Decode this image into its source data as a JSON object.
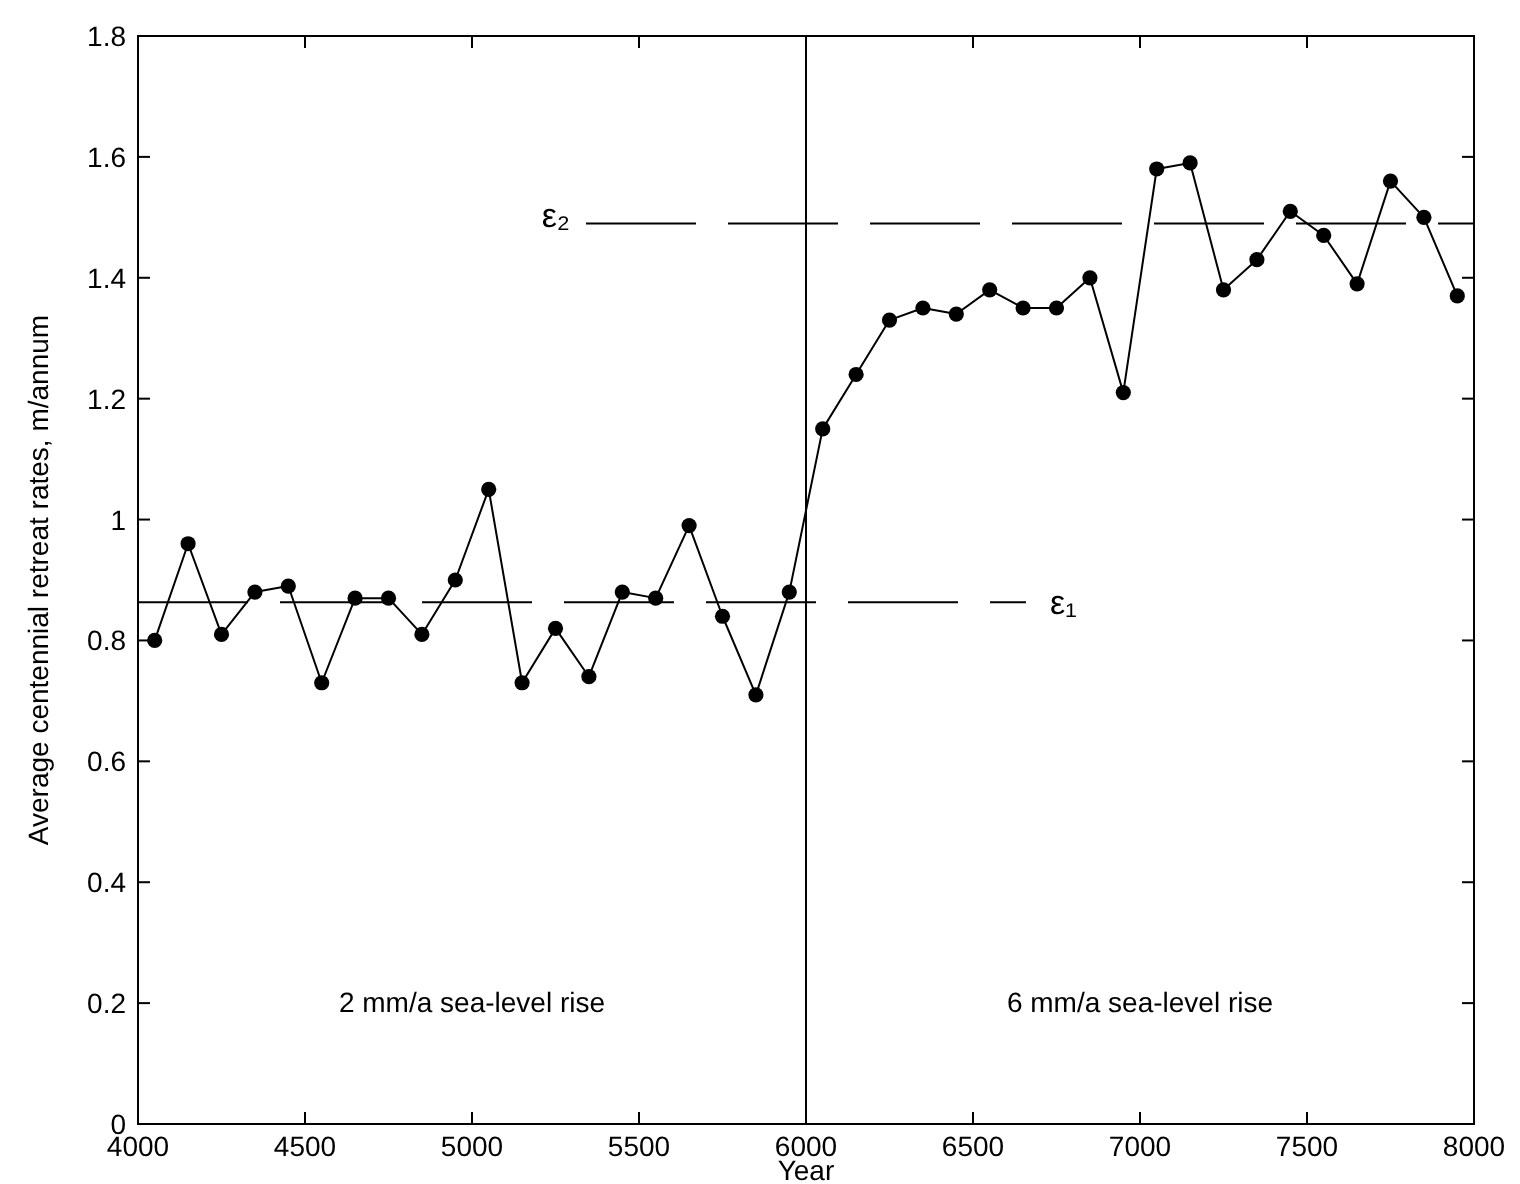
{
  "chart_data": {
    "type": "line",
    "xlabel": "Year",
    "ylabel": "Average centennial retreat rates, m/annum",
    "x": [
      4050,
      4150,
      4250,
      4350,
      4450,
      4550,
      4650,
      4750,
      4850,
      4950,
      5050,
      5150,
      5250,
      5350,
      5450,
      5550,
      5650,
      5750,
      5850,
      5950,
      6050,
      6150,
      6250,
      6350,
      6450,
      6550,
      6650,
      6750,
      6850,
      6950,
      7050,
      7150,
      7250,
      7350,
      7450,
      7550,
      7650,
      7750,
      7850,
      7950
    ],
    "series": [
      {
        "color": "#000000",
        "values": [
          0.8,
          0.96,
          0.81,
          0.88,
          0.89,
          0.73,
          0.87,
          0.87,
          0.81,
          0.9,
          1.05,
          0.73,
          0.82,
          0.74,
          0.88,
          0.87,
          0.99,
          0.84,
          0.71,
          0.88,
          1.15,
          1.24,
          1.33,
          1.35,
          1.34,
          1.38,
          1.35,
          1.35,
          1.4,
          1.21,
          1.58,
          1.59,
          1.38,
          1.43,
          1.51,
          1.47,
          1.39,
          1.56,
          1.5,
          1.37
        ]
      }
    ],
    "marker": "circle",
    "line_style": "solid",
    "xlim": [
      4000,
      8000
    ],
    "xticks": [
      4000,
      4500,
      5000,
      5500,
      6000,
      6500,
      7000,
      7500,
      8000
    ],
    "ylim": [
      0,
      1.8
    ],
    "yticks": [
      0,
      0.2,
      0.4,
      0.6,
      0.8,
      1,
      1.2,
      1.4,
      1.6,
      1.8
    ],
    "ref_lines": [
      {
        "axis": "x",
        "value": 6000,
        "color": "#000000",
        "line_style": "solid"
      },
      {
        "axis": "y",
        "value": 0.863,
        "label": "ε₁",
        "color": "#000000",
        "line_style": "dashed"
      },
      {
        "axis": "y",
        "value": 1.49,
        "label": "ε₂",
        "color": "#000000",
        "line_style": "dashed"
      }
    ],
    "annotations": [
      "2 mm/a sea-level rise",
      "6 mm/a sea-level rise"
    ]
  }
}
